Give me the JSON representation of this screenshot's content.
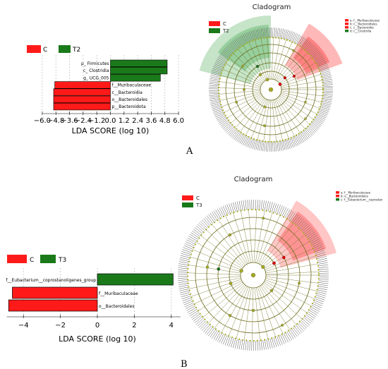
{
  "panel_labels": {
    "A": "A",
    "B": "B"
  },
  "colors": {
    "C": "#ff1a1a",
    "T": "#1a7a1a",
    "edge": "#000000",
    "node": "#a3a81f",
    "branch": "#6b6b1a"
  },
  "chart_data": [
    {
      "type": "bar",
      "panel": "A",
      "legend": [
        {
          "name": "C",
          "color": "#ff1a1a"
        },
        {
          "name": "T2",
          "color": "#1a7a1a"
        }
      ],
      "bars": [
        {
          "label": "p_ Firmicutes",
          "value": 5.0,
          "group": "T2"
        },
        {
          "label": "c_ Clostridia",
          "value": 5.0,
          "group": "T2"
        },
        {
          "label": "g_ UCG_005",
          "value": 4.4,
          "group": "T2"
        },
        {
          "label": "f__Muribaculaceae",
          "value": -4.9,
          "group": "C"
        },
        {
          "label": "c__Bacteroidia",
          "value": -5.0,
          "group": "C"
        },
        {
          "label": "o__Bacteroidales",
          "value": -5.0,
          "group": "C"
        },
        {
          "label": "p__Bacteroidota",
          "value": -5.0,
          "group": "C"
        }
      ],
      "ticks": [
        "−6.0",
        "−4.8",
        "−3.6",
        "−2.4",
        "−1.2",
        "0.0",
        "1.2",
        "2.4",
        "3.6",
        "4.8",
        "6.0"
      ],
      "tick_values": [
        -6.0,
        -4.8,
        -3.6,
        -2.4,
        -1.2,
        0.0,
        1.2,
        2.4,
        3.6,
        4.8,
        6.0
      ],
      "xlabel": "LDA SCORE (log 10)",
      "xlim": [
        -6.5,
        6.5
      ]
    },
    {
      "type": "bar",
      "panel": "B",
      "legend": [
        {
          "name": "C",
          "color": "#ff1a1a"
        },
        {
          "name": "T3",
          "color": "#1a7a1a"
        }
      ],
      "bars": [
        {
          "label": "f__Eubacterium__coprostanoligenes_group",
          "value": 4.1,
          "group": "T3"
        },
        {
          "label": "f__Muribaculaceae",
          "value": -4.6,
          "group": "C"
        },
        {
          "label": "o__Bacteroidales",
          "value": -4.8,
          "group": "C"
        }
      ],
      "ticks": [
        "−4",
        "−2",
        "0",
        "2",
        "4"
      ],
      "tick_values": [
        -4,
        -2,
        0,
        2,
        4
      ],
      "xlabel": "LDA SCORE (log 10)",
      "xlim": [
        -4.9,
        4.5
      ]
    }
  ],
  "cladograms": [
    {
      "panel": "A",
      "title": "Cladogram",
      "legend": [
        {
          "name": "C",
          "color": "#ff1a1a"
        },
        {
          "name": "T2",
          "color": "#1a7a1a"
        }
      ],
      "key": [
        "a: f__Muribaculaceae",
        "b: c__Bacteroidales",
        "c: c__Bacteroidia",
        "d: c__Clostridia"
      ]
    },
    {
      "panel": "B",
      "title": "Cladogram",
      "legend": [
        {
          "name": "C",
          "color": "#ff1a1a"
        },
        {
          "name": "T3",
          "color": "#1a7a1a"
        }
      ],
      "key": [
        "a: f__Muribaculaceae",
        "b: o__Bacteroidales",
        "c: f__Eubacterium__coprostan"
      ]
    }
  ]
}
